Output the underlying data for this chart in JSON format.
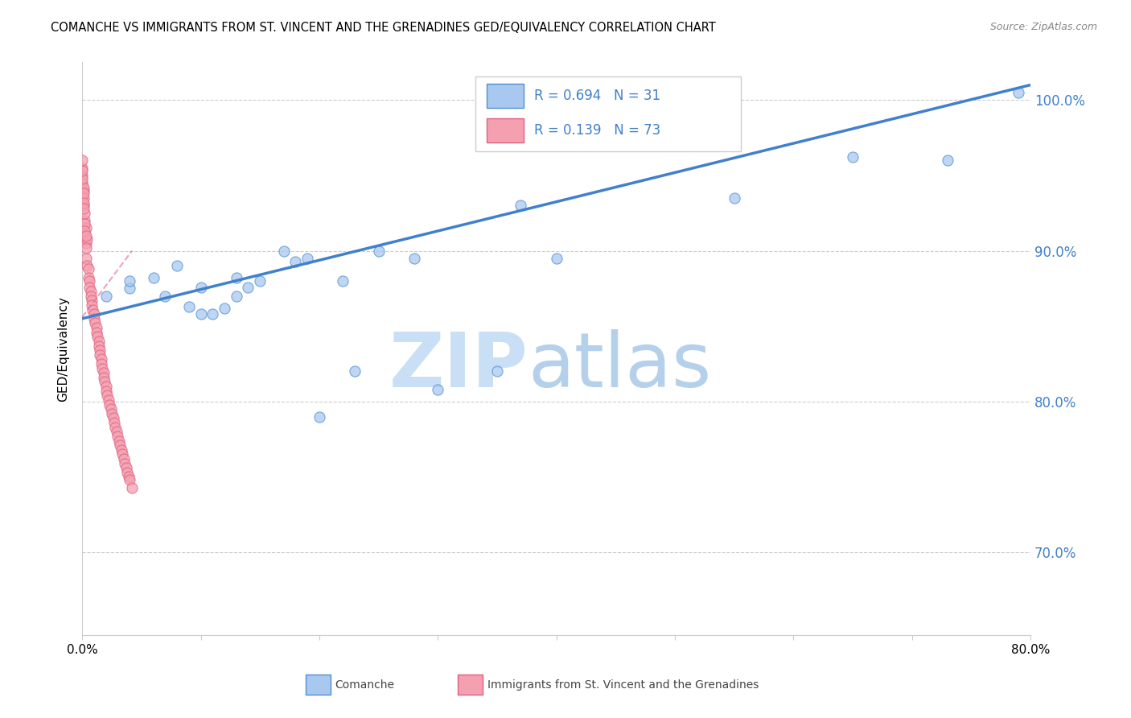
{
  "title": "COMANCHE VS IMMIGRANTS FROM ST. VINCENT AND THE GRENADINES GED/EQUIVALENCY CORRELATION CHART",
  "source": "Source: ZipAtlas.com",
  "ylabel": "GED/Equivalency",
  "xlim": [
    0.0,
    0.8
  ],
  "ylim": [
    0.645,
    1.025
  ],
  "ytick_values": [
    0.7,
    0.8,
    0.9,
    1.0
  ],
  "xtick_values": [
    0.0,
    0.1,
    0.2,
    0.3,
    0.4,
    0.5,
    0.6,
    0.7,
    0.8
  ],
  "blue_R": 0.694,
  "blue_N": 31,
  "pink_R": 0.139,
  "pink_N": 73,
  "blue_color": "#A8C8F0",
  "pink_color": "#F4A0B0",
  "blue_edge_color": "#5090D0",
  "pink_edge_color": "#E06080",
  "blue_line_color": "#4080CC",
  "pink_line_color": "#E87090",
  "blue_scatter_x": [
    0.02,
    0.04,
    0.04,
    0.06,
    0.07,
    0.08,
    0.09,
    0.1,
    0.1,
    0.11,
    0.12,
    0.13,
    0.13,
    0.14,
    0.15,
    0.17,
    0.18,
    0.19,
    0.2,
    0.22,
    0.23,
    0.25,
    0.28,
    0.3,
    0.35,
    0.37,
    0.4,
    0.55,
    0.65,
    0.73,
    0.79
  ],
  "blue_scatter_y": [
    0.87,
    0.875,
    0.88,
    0.882,
    0.87,
    0.89,
    0.863,
    0.858,
    0.876,
    0.858,
    0.862,
    0.87,
    0.882,
    0.876,
    0.88,
    0.9,
    0.893,
    0.895,
    0.79,
    0.88,
    0.82,
    0.9,
    0.895,
    0.808,
    0.82,
    0.93,
    0.895,
    0.935,
    0.962,
    0.96,
    1.005
  ],
  "pink_scatter_x": [
    0.001,
    0.001,
    0.002,
    0.002,
    0.003,
    0.003,
    0.004,
    0.005,
    0.005,
    0.006,
    0.006,
    0.007,
    0.007,
    0.008,
    0.008,
    0.009,
    0.01,
    0.01,
    0.011,
    0.012,
    0.012,
    0.013,
    0.014,
    0.014,
    0.015,
    0.015,
    0.016,
    0.016,
    0.017,
    0.018,
    0.018,
    0.019,
    0.02,
    0.02,
    0.021,
    0.022,
    0.023,
    0.024,
    0.025,
    0.026,
    0.027,
    0.028,
    0.029,
    0.03,
    0.031,
    0.032,
    0.033,
    0.034,
    0.035,
    0.036,
    0.037,
    0.038,
    0.039,
    0.04,
    0.042,
    0.0,
    0.0,
    0.001,
    0.002,
    0.003,
    0.004,
    0.0,
    0.0,
    0.001,
    0.0,
    0.001,
    0.0,
    0.001,
    0.001,
    0.002,
    0.002,
    0.003,
    0.003
  ],
  "pink_scatter_y": [
    0.94,
    0.93,
    0.92,
    0.91,
    0.905,
    0.895,
    0.89,
    0.888,
    0.882,
    0.88,
    0.876,
    0.873,
    0.87,
    0.867,
    0.864,
    0.861,
    0.858,
    0.855,
    0.852,
    0.849,
    0.846,
    0.843,
    0.84,
    0.837,
    0.834,
    0.831,
    0.828,
    0.825,
    0.822,
    0.819,
    0.816,
    0.813,
    0.81,
    0.807,
    0.804,
    0.801,
    0.798,
    0.795,
    0.792,
    0.789,
    0.786,
    0.783,
    0.78,
    0.777,
    0.774,
    0.771,
    0.768,
    0.765,
    0.762,
    0.759,
    0.756,
    0.753,
    0.75,
    0.748,
    0.743,
    0.95,
    0.945,
    0.935,
    0.925,
    0.915,
    0.908,
    0.955,
    0.96,
    0.942,
    0.948,
    0.938,
    0.953,
    0.932,
    0.928,
    0.918,
    0.913,
    0.91,
    0.902
  ],
  "blue_trendline_x": [
    0.0,
    0.8
  ],
  "blue_trendline_y": [
    0.855,
    1.01
  ],
  "pink_trendline_x": [
    0.0,
    0.042
  ],
  "pink_trendline_y": [
    0.856,
    0.9
  ],
  "legend_label_blue": "Comanche",
  "legend_label_pink": "Immigrants from St. Vincent and the Grenadines"
}
